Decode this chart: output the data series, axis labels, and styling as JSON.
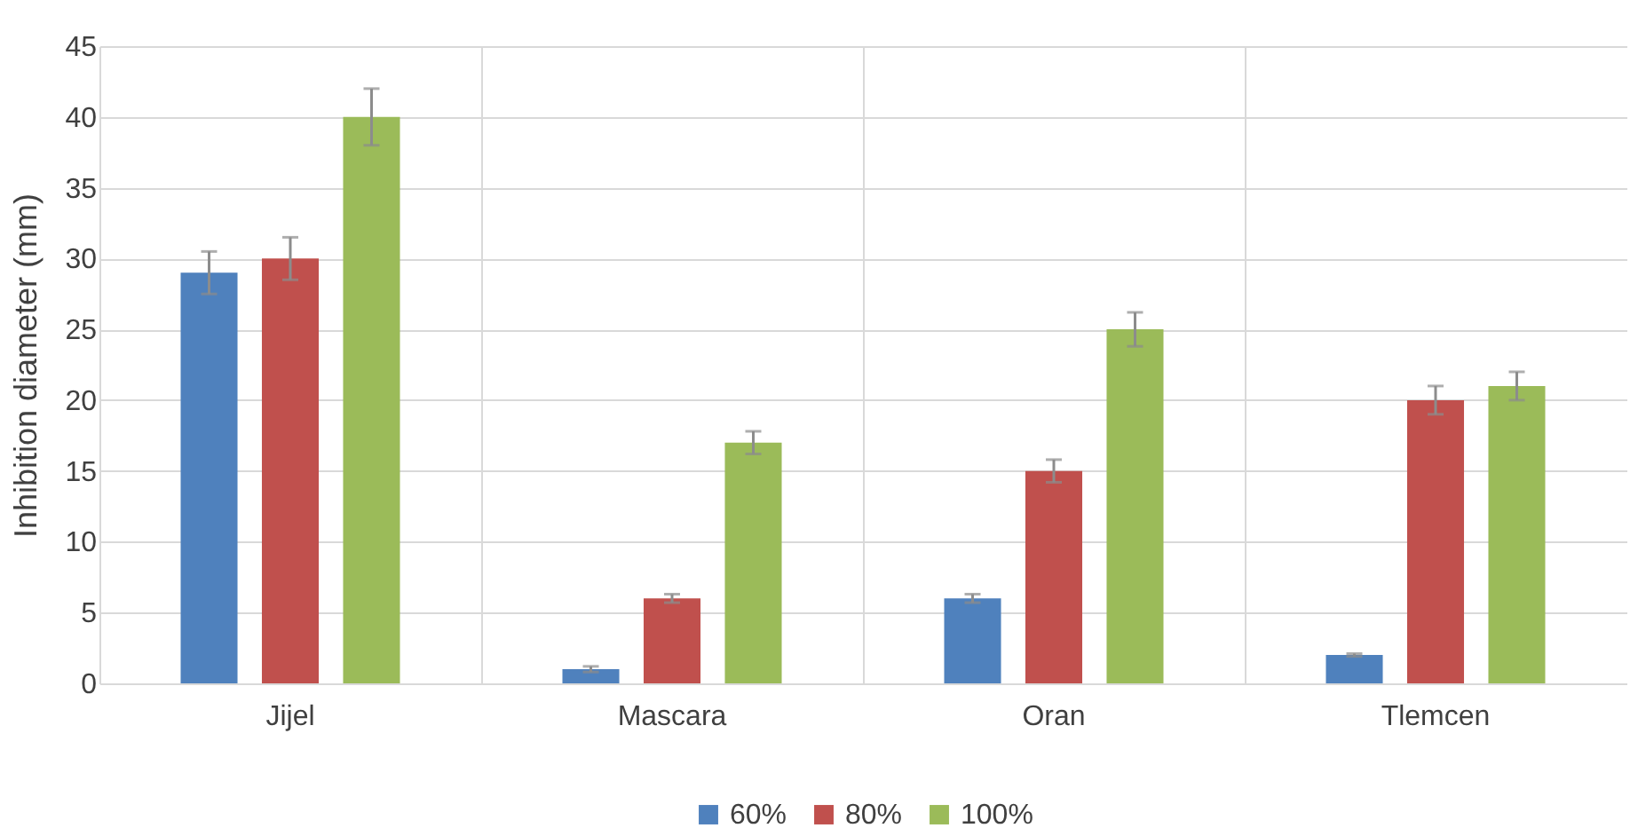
{
  "chart_data": {
    "type": "bar",
    "ylabel": "Inhibition diameter (mm)",
    "categories": [
      "Jijel",
      "Mascara",
      "Oran",
      "Tlemcen"
    ],
    "series": [
      {
        "name": "60%",
        "color": "#4f81bd",
        "values": [
          29,
          1,
          6,
          2
        ],
        "errors": [
          1.5,
          0.2,
          0.3,
          0.1
        ]
      },
      {
        "name": "80%",
        "color": "#c0504d",
        "values": [
          30,
          6,
          15,
          20
        ],
        "errors": [
          1.5,
          0.3,
          0.8,
          1
        ]
      },
      {
        "name": "100%",
        "color": "#9bbb59",
        "values": [
          40,
          17,
          25,
          21
        ],
        "errors": [
          2,
          0.8,
          1.2,
          1
        ]
      }
    ],
    "ylim": [
      0,
      45
    ],
    "yticks": [
      0,
      5,
      10,
      15,
      20,
      25,
      30,
      35,
      40,
      45
    ],
    "grid": true,
    "legend": "bottom"
  }
}
